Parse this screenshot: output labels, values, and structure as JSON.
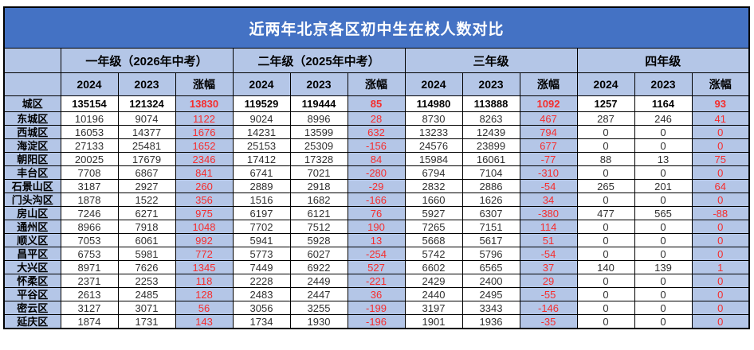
{
  "chart_data": {
    "type": "table",
    "title": "近两年北京各区初中生在校人数对比",
    "corner_label": "",
    "column_groups": [
      "一年级（2026年中考）",
      "二年级（2025年中考）",
      "三年级",
      "四年级"
    ],
    "sub_columns": [
      "2024",
      "2023",
      "涨幅"
    ],
    "rows": [
      {
        "name": "城区",
        "is_total": true,
        "values": [
          135154,
          121324,
          13830,
          119529,
          119444,
          85,
          114980,
          113888,
          1092,
          1257,
          1164,
          93
        ]
      },
      {
        "name": "东城区",
        "values": [
          10196,
          9074,
          1122,
          9024,
          8996,
          28,
          8730,
          8263,
          467,
          287,
          246,
          41
        ]
      },
      {
        "name": "西城区",
        "values": [
          16053,
          14377,
          1676,
          14231,
          13599,
          632,
          13233,
          12439,
          794,
          0,
          0,
          0
        ]
      },
      {
        "name": "海淀区",
        "values": [
          27133,
          25481,
          1652,
          25153,
          25309,
          -156,
          24576,
          23899,
          677,
          0,
          0,
          0
        ]
      },
      {
        "name": "朝阳区",
        "values": [
          20025,
          17679,
          2346,
          17412,
          17328,
          84,
          15984,
          16061,
          -77,
          88,
          13,
          75
        ]
      },
      {
        "name": "丰台区",
        "values": [
          7708,
          6867,
          841,
          6741,
          7021,
          -280,
          6794,
          7104,
          -310,
          0,
          0,
          0
        ]
      },
      {
        "name": "石景山区",
        "values": [
          3187,
          2927,
          260,
          2889,
          2918,
          -29,
          2832,
          2886,
          -54,
          265,
          201,
          64
        ]
      },
      {
        "name": "门头沟区",
        "values": [
          1878,
          1522,
          356,
          1516,
          1682,
          -166,
          1660,
          1626,
          34,
          0,
          0,
          0
        ]
      },
      {
        "name": "房山区",
        "values": [
          7246,
          6271,
          975,
          6197,
          6121,
          76,
          5927,
          6307,
          -380,
          477,
          565,
          -88
        ]
      },
      {
        "name": "通州区",
        "values": [
          8966,
          7918,
          1048,
          7702,
          7512,
          190,
          7265,
          7151,
          114,
          0,
          0,
          0
        ]
      },
      {
        "name": "顺义区",
        "values": [
          7053,
          6061,
          992,
          5941,
          5928,
          13,
          5668,
          5617,
          51,
          0,
          0,
          0
        ]
      },
      {
        "name": "昌平区",
        "values": [
          6753,
          5981,
          772,
          5773,
          6027,
          -254,
          5742,
          5796,
          -54,
          0,
          0,
          0
        ]
      },
      {
        "name": "大兴区",
        "values": [
          8971,
          7626,
          1345,
          7449,
          6922,
          527,
          6602,
          6565,
          37,
          140,
          139,
          1
        ]
      },
      {
        "name": "怀柔区",
        "values": [
          2371,
          2253,
          118,
          2228,
          2449,
          -221,
          2429,
          2400,
          29,
          0,
          0,
          0
        ]
      },
      {
        "name": "平谷区",
        "values": [
          2613,
          2485,
          128,
          2483,
          2447,
          36,
          2440,
          2495,
          -55,
          0,
          0,
          0
        ]
      },
      {
        "name": "密云区",
        "values": [
          3127,
          3071,
          56,
          3056,
          3255,
          -199,
          3197,
          3343,
          -146,
          0,
          0,
          0
        ]
      },
      {
        "name": "延庆区",
        "values": [
          1874,
          1731,
          143,
          1734,
          1930,
          -196,
          1901,
          1936,
          -35,
          0,
          0,
          0
        ]
      }
    ],
    "colors": {
      "title_bg": "#4472C4",
      "title_text": "#FFFFFF",
      "header_bg": "#B4C6E7",
      "delta_text": "#F52D2D",
      "value_text": "#303030",
      "border": "#000000"
    }
  }
}
